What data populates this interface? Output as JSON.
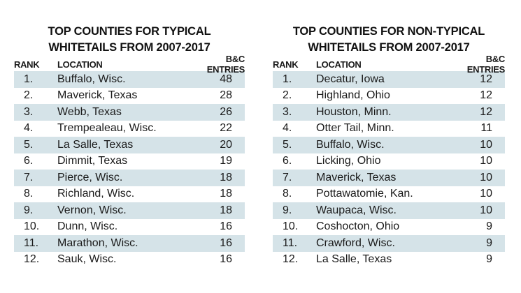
{
  "typical": {
    "title_line1": "TOP COUNTIES FOR TYPICAL",
    "title_line2": "WHITETAILS FROM 2007-2017",
    "headers": {
      "rank": "RANK",
      "location": "LOCATION",
      "entries": "B&C ENTRIES"
    },
    "rows": [
      {
        "rank": "1.",
        "location": "Buffalo, Wisc.",
        "entries": "48"
      },
      {
        "rank": "2.",
        "location": "Maverick, Texas",
        "entries": "28"
      },
      {
        "rank": "3.",
        "location": "Webb, Texas",
        "entries": "26"
      },
      {
        "rank": "4.",
        "location": "Trempealeau, Wisc.",
        "entries": "22"
      },
      {
        "rank": "5.",
        "location": "La Salle, Texas",
        "entries": "20"
      },
      {
        "rank": "6.",
        "location": "Dimmit, Texas",
        "entries": "19"
      },
      {
        "rank": "7.",
        "location": "Pierce, Wisc.",
        "entries": "18"
      },
      {
        "rank": "8.",
        "location": "Richland, Wisc.",
        "entries": "18"
      },
      {
        "rank": "9.",
        "location": "Vernon, Wisc.",
        "entries": "18"
      },
      {
        "rank": "10.",
        "location": "Dunn, Wisc.",
        "entries": "16"
      },
      {
        "rank": "11.",
        "location": "Marathon, Wisc.",
        "entries": "16"
      },
      {
        "rank": "12.",
        "location": "Sauk, Wisc.",
        "entries": "16"
      }
    ]
  },
  "nontypical": {
    "title_line1": "TOP COUNTIES FOR NON-TYPICAL",
    "title_line2": "WHITETAILS FROM 2007-2017",
    "headers": {
      "rank": "RANK",
      "location": "LOCATION",
      "entries": "B&C ENTRIES"
    },
    "rows": [
      {
        "rank": "1.",
        "location": "Decatur, Iowa",
        "entries": "12"
      },
      {
        "rank": "2.",
        "location": "Highland, Ohio",
        "entries": "12"
      },
      {
        "rank": "3.",
        "location": "Houston, Minn.",
        "entries": "12"
      },
      {
        "rank": "4.",
        "location": "Otter Tail, Minn.",
        "entries": "11"
      },
      {
        "rank": "5.",
        "location": "Buffalo, Wisc.",
        "entries": "10"
      },
      {
        "rank": "6.",
        "location": "Licking, Ohio",
        "entries": "10"
      },
      {
        "rank": "7.",
        "location": "Maverick, Texas",
        "entries": "10"
      },
      {
        "rank": "8.",
        "location": "Pottawatomie, Kan.",
        "entries": "10"
      },
      {
        "rank": "9.",
        "location": "Waupaca, Wisc.",
        "entries": "10"
      },
      {
        "rank": "10.",
        "location": "Coshocton, Ohio",
        "entries": "9"
      },
      {
        "rank": "11.",
        "location": "Crawford, Wisc.",
        "entries": "9"
      },
      {
        "rank": "12.",
        "location": "La Salle, Texas",
        "entries": "9"
      }
    ]
  },
  "colors": {
    "row_shade": "#d5e3e8",
    "text": "#1a1a1a"
  }
}
